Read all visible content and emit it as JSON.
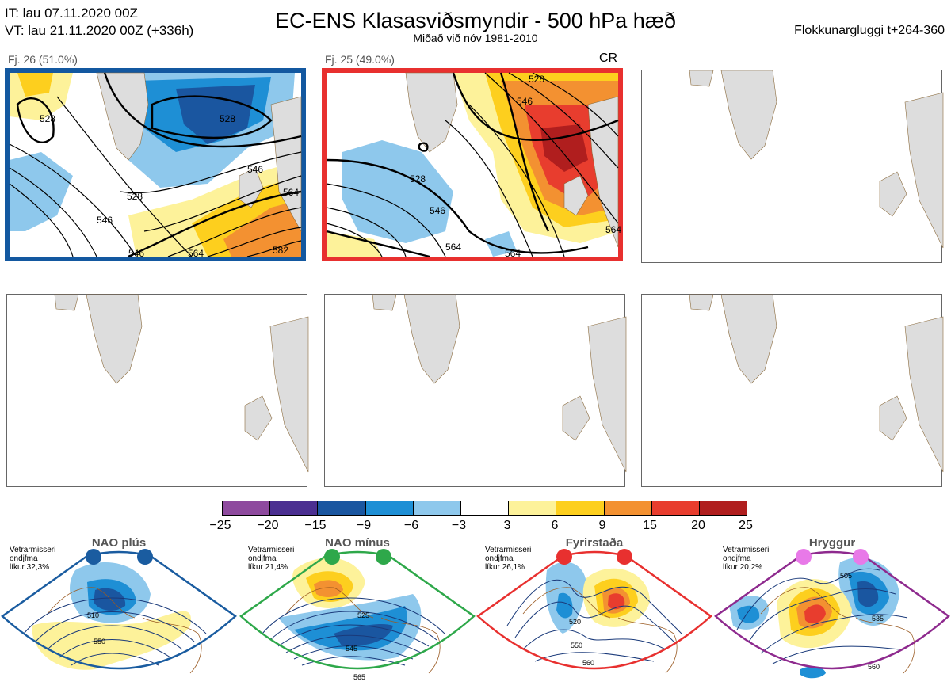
{
  "header": {
    "issue_time": "IT: lau 07.11.2020 00Z",
    "valid_time": "VT: lau 21.11.2020 00Z  (+336h)",
    "title": "EC-ENS Klasasviðsmyndir - 500 hPa hæð",
    "subtitle": "Miðað við nóv 1981-2010",
    "window": "Flokkunargluggi t+264-360"
  },
  "clusters": [
    {
      "label": "Fj. 26 (51.0%)",
      "frame_color": "#1358a0",
      "contour_labels": [
        "528",
        "528",
        "528",
        "546",
        "546",
        "564",
        "564",
        "582",
        "546"
      ]
    },
    {
      "label": "Fj. 25 (49.0%)",
      "frame_color": "#e8302f",
      "tag": "CR",
      "contour_labels": [
        "528",
        "528",
        "546",
        "546",
        "564",
        "564",
        "564"
      ]
    }
  ],
  "empty_panels": 4,
  "colorbar": {
    "colors": [
      "#8e4a9e",
      "#4b2f91",
      "#1a56a0",
      "#1e8fd5",
      "#8ec8ec",
      "#ffffff",
      "#fdf29a",
      "#fdcf1e",
      "#f39131",
      "#e83d2e",
      "#b01e1e"
    ],
    "ticks": [
      "−25",
      "−20",
      "−15",
      "−9",
      "−6",
      "−3",
      "3",
      "6",
      "9",
      "15",
      "20",
      "25"
    ]
  },
  "regimes": [
    {
      "title": "NAO plús",
      "note": [
        "Vetrarmisseri",
        "ondjfma",
        "líkur 32,3%"
      ],
      "frame_color": "#1a5ca0",
      "dot_color": "#1a5ca0",
      "contour_labels": [
        "510",
        "550"
      ]
    },
    {
      "title": "NAO mínus",
      "note": [
        "Vetrarmisseri",
        "ondjfma",
        "líkur 21,4%"
      ],
      "frame_color": "#2ea84a",
      "dot_color": "#2ea84a",
      "contour_labels": [
        "525",
        "545",
        "565"
      ]
    },
    {
      "title": "Fyrirstaða",
      "note": [
        "Vetrarmisseri",
        "ondjfma",
        "líkur 26,1%"
      ],
      "frame_color": "#e8302f",
      "dot_color": "#e8302f",
      "contour_labels": [
        "520",
        "550",
        "560"
      ]
    },
    {
      "title": "Hryggur",
      "note": [
        "Vetrarmisseri",
        "ondjfma",
        "líkur 20,2%"
      ],
      "frame_color": "#8e2a8e",
      "dot_color": "#e879e8",
      "contour_labels": [
        "505",
        "535",
        "560"
      ]
    }
  ]
}
